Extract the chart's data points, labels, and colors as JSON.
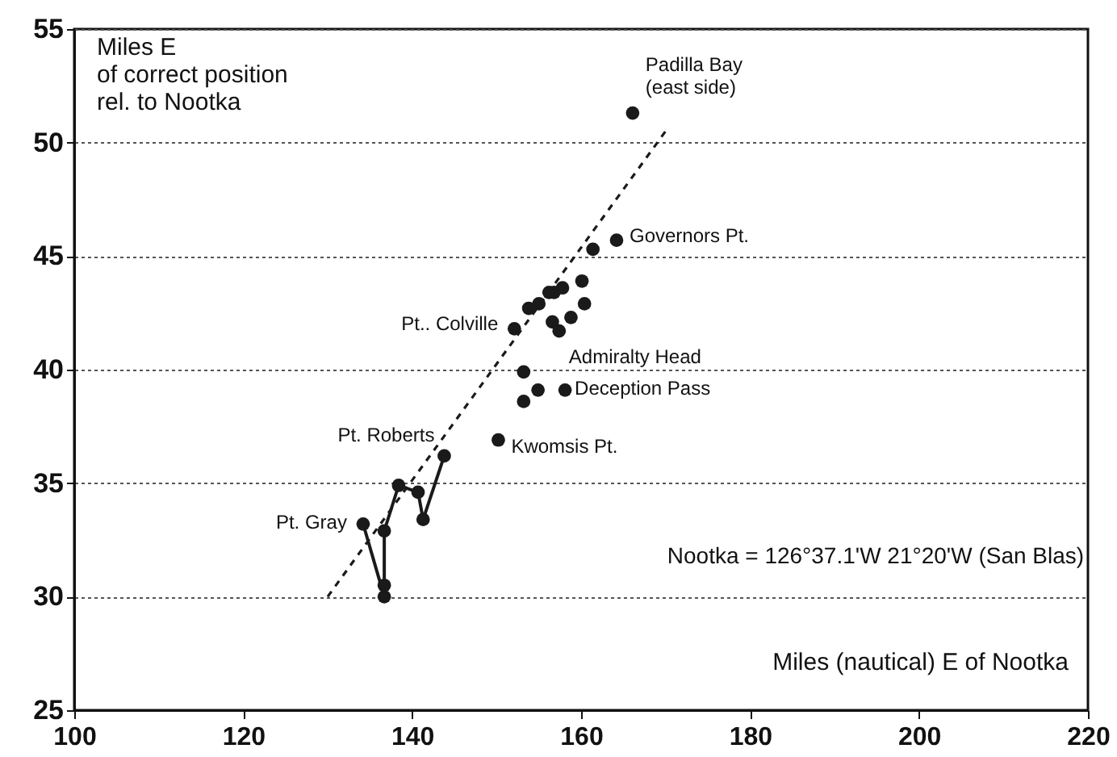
{
  "chart_data": {
    "type": "scatter",
    "xlabel": "Miles (nautical) E of Nootka",
    "ylabel": "Miles E\nof correct position\nrel. to Nootka",
    "xlim": [
      100,
      220
    ],
    "xticks": [
      100,
      120,
      140,
      160,
      180,
      200,
      220
    ],
    "ylim": [
      25,
      55
    ],
    "yticks": [
      25,
      30,
      35,
      40,
      45,
      50,
      55
    ],
    "grid": "y",
    "marker": "circle",
    "series": [
      {
        "type": "line",
        "color": "#1a1a1a",
        "line_style": "solid",
        "x": [
          134.2,
          136.7,
          136.7,
          136.7,
          138.4,
          140.7,
          141.3,
          143.8
        ],
        "values": [
          33.2,
          30.0,
          30.5,
          32.9,
          34.9,
          34.6,
          33.4,
          36.2
        ]
      },
      {
        "type": "scatter",
        "color": "#1a1a1a",
        "x": [
          150.2,
          153.2,
          154.9,
          158.1,
          153.2,
          152.1,
          153.8,
          155.0,
          156.2,
          156.8,
          157.8,
          160.1,
          160.4,
          158.8,
          156.6,
          157.4,
          161.4,
          164.2,
          166.1
        ],
        "values": [
          36.9,
          38.6,
          39.1,
          39.1,
          39.9,
          41.8,
          42.7,
          42.9,
          43.4,
          43.4,
          43.6,
          43.9,
          42.9,
          42.3,
          42.1,
          41.7,
          45.3,
          45.7,
          51.3
        ]
      },
      {
        "type": "line",
        "color": "#1a1a1a",
        "marker": "none",
        "line_style": "dashed",
        "x": [
          130,
          170
        ],
        "values": [
          30,
          50.5
        ]
      }
    ],
    "annotations": [
      {
        "text": "Padilla Bay\n(east side)",
        "x": 166.1,
        "y": 51.3
      },
      {
        "text": "Governors Pt.",
        "x": 164.2,
        "y": 45.7
      },
      {
        "text": "Pt.. Colville",
        "x": 152.1,
        "y": 41.8
      },
      {
        "text": "Admiralty Head",
        "x": 157.4,
        "y": 41.7
      },
      {
        "text": "Deception Pass",
        "x": 158.1,
        "y": 39.1
      },
      {
        "text": "Kwomsis Pt.",
        "x": 150.2,
        "y": 36.9
      },
      {
        "text": "Pt. Roberts",
        "x": 143.8,
        "y": 36.2
      },
      {
        "text": "Pt. Gray",
        "x": 134.2,
        "y": 33.2
      },
      "Nootka = 126°37.1'W  21°20'W (San Blas)"
    ]
  }
}
